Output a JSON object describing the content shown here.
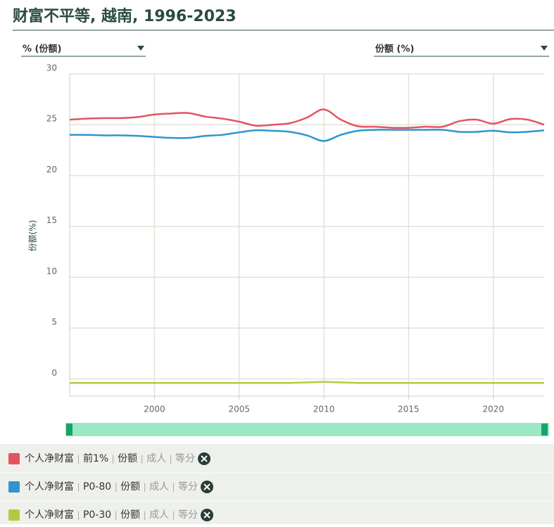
{
  "chart_data": {
    "type": "line",
    "title": "财富不平等, 越南, 1996-2023",
    "dropdown_left": "% (份额)",
    "dropdown_right": "份额 (%)",
    "y_label": "份额(%)",
    "x": [
      1995,
      1996,
      1997,
      1998,
      1999,
      2000,
      2001,
      2002,
      2003,
      2004,
      2005,
      2006,
      2007,
      2008,
      2009,
      2010,
      2011,
      2012,
      2013,
      2014,
      2015,
      2016,
      2017,
      2018,
      2019,
      2020,
      2021,
      2022,
      2023
    ],
    "series": [
      {
        "name": "个人净财富 | 前1% | 份额 | 成人 | 等分",
        "color": "#e4545f",
        "values": [
          25.5,
          25.6,
          25.65,
          25.65,
          25.75,
          26.0,
          26.1,
          26.15,
          25.8,
          25.6,
          25.3,
          24.9,
          25.0,
          25.15,
          25.7,
          26.5,
          25.5,
          24.85,
          24.8,
          24.7,
          24.7,
          24.8,
          24.8,
          25.35,
          25.5,
          25.1,
          25.55,
          25.5,
          25.0
        ]
      },
      {
        "name": "个人净财富 | P0-80 | 份额 | 成人 | 等分",
        "color": "#2f94d0",
        "values": [
          24.0,
          24.0,
          23.95,
          23.95,
          23.9,
          23.8,
          23.7,
          23.7,
          23.9,
          24.0,
          24.25,
          24.45,
          24.4,
          24.3,
          23.95,
          23.4,
          24.0,
          24.4,
          24.5,
          24.5,
          24.5,
          24.5,
          24.5,
          24.3,
          24.3,
          24.4,
          24.25,
          24.3,
          24.45
        ]
      },
      {
        "name": "个人净财富 | P0-30 | 份额 | 成人 | 等分",
        "color": "#b5c940",
        "values": [
          -0.4,
          -0.4,
          -0.4,
          -0.4,
          -0.4,
          -0.4,
          -0.4,
          -0.4,
          -0.4,
          -0.4,
          -0.4,
          -0.4,
          -0.4,
          -0.4,
          -0.35,
          -0.3,
          -0.35,
          -0.4,
          -0.4,
          -0.4,
          -0.4,
          -0.4,
          -0.4,
          -0.4,
          -0.4,
          -0.4,
          -0.4,
          -0.4,
          -0.4
        ]
      }
    ],
    "xlim": [
      1995,
      2023
    ],
    "xticks": [
      2000,
      2005,
      2010,
      2015,
      2020
    ],
    "ylim": [
      -1.7,
      30
    ],
    "yticks": [
      0,
      5,
      10,
      15,
      20,
      25,
      30
    ],
    "grid": true
  }
}
